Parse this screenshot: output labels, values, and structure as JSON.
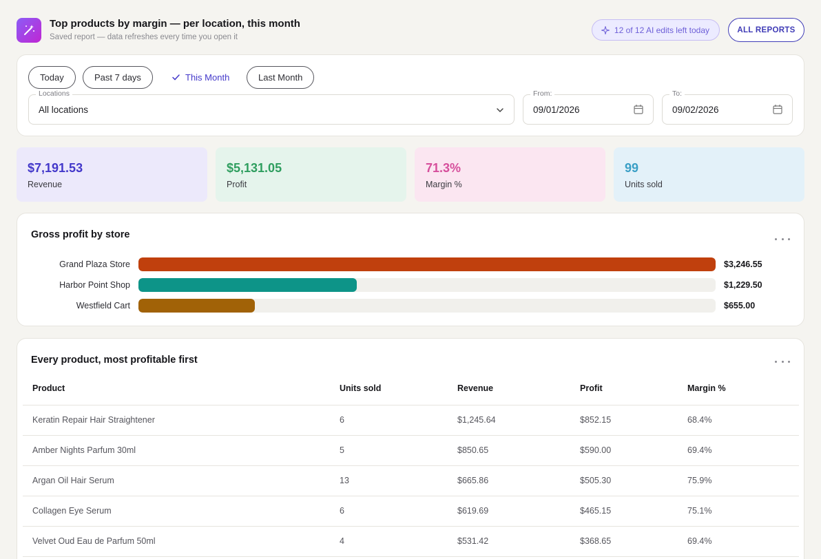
{
  "header": {
    "title": "Top products by margin — per location, this month",
    "subtitle": "Saved report — data refreshes every time you open it",
    "ai_edits": "12 of 12 AI edits left today",
    "all_reports": "ALL REPORTS",
    "icon": "magic-wand-icon"
  },
  "filters": {
    "chips": {
      "today": "Today",
      "past7": "Past 7 days",
      "this_month": "This Month",
      "last_month": "Last Month"
    },
    "active_chip": "This Month",
    "locations": {
      "label": "Locations",
      "value": "All locations"
    },
    "from": {
      "label": "From:",
      "value": "09/01/2026"
    },
    "to": {
      "label": "To:",
      "value": "09/02/2026"
    }
  },
  "kpis": [
    {
      "value": "$7,191.53",
      "label": "Revenue",
      "color": "#4338ca",
      "bg": "#ece9fb"
    },
    {
      "value": "$5,131.05",
      "label": "Profit",
      "color": "#2f9e5f",
      "bg": "#e5f4ec"
    },
    {
      "value": "71.3%",
      "label": "Margin %",
      "color": "#d64f9c",
      "bg": "#fbe6f1"
    },
    {
      "value": "99",
      "label": "Units sold",
      "color": "#3a9fc6",
      "bg": "#e3f1f9"
    }
  ],
  "chart_data": {
    "type": "bar",
    "orientation": "horizontal",
    "title": "Gross profit by store",
    "categories": [
      "Grand Plaza Store",
      "Harbor Point Shop",
      "Westfield Cart"
    ],
    "values": [
      3246.55,
      1229.5,
      655.0
    ],
    "value_labels": [
      "$3,246.55",
      "$1,229.50",
      "$655.00"
    ],
    "colors": [
      "#c0400d",
      "#0d9488",
      "#a16207"
    ],
    "xlim": [
      0,
      3246.55
    ]
  },
  "table": {
    "title": "Every product, most profitable first",
    "columns": [
      "Product",
      "Units sold",
      "Revenue",
      "Profit",
      "Margin %"
    ],
    "rows": [
      [
        "Keratin Repair Hair Straightener",
        "6",
        "$1,245.64",
        "$852.15",
        "68.4%"
      ],
      [
        "Amber Nights Parfum 30ml",
        "5",
        "$850.65",
        "$590.00",
        "69.4%"
      ],
      [
        "Argan Oil Hair Serum",
        "13",
        "$665.86",
        "$505.30",
        "75.9%"
      ],
      [
        "Collagen Eye Serum",
        "6",
        "$619.69",
        "$465.15",
        "75.1%"
      ],
      [
        "Velvet Oud Eau de Parfum 50ml",
        "4",
        "$531.42",
        "$368.65",
        "69.4%"
      ]
    ]
  }
}
